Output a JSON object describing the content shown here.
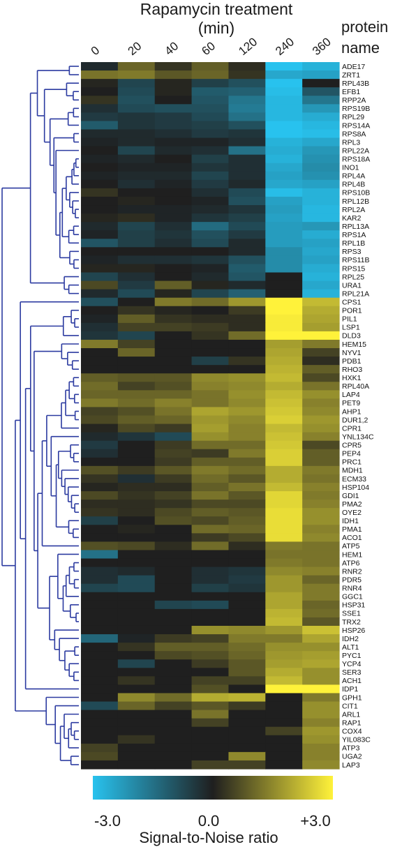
{
  "chart_data": {
    "type": "heatmap",
    "title_line1": "Rapamycin treatment",
    "title_line2": "(min)",
    "row_header_line1": "protein",
    "row_header_line2": "name",
    "x": [
      "0",
      "20",
      "40",
      "60",
      "120",
      "240",
      "360"
    ],
    "rows": [
      "ADE17",
      "ZRT1",
      "RPL43B",
      "EFB1",
      "RPP2A",
      "RPS19B",
      "RPL29",
      "RPS14A",
      "RPS8A",
      "RPL3",
      "RPL22A",
      "RPS18A",
      "INO1",
      "RPL4A",
      "RPL4B",
      "RPS10B",
      "RPL12B",
      "RPL2A",
      "KAR2",
      "RPL13A",
      "RPS1A",
      "RPL1B",
      "RPS3",
      "RPS11B",
      "RPS15",
      "RPL25",
      "URA1",
      "RPL21A",
      "CPS1",
      "POR1",
      "PIL1",
      "LSP1",
      "DLD3",
      "HEM15",
      "NYV1",
      "PDB1",
      "RHO3",
      "HXK1",
      "RPL40A",
      "LAP4",
      "PET9",
      "AHP1",
      "DUR1,2",
      "CPR1",
      "YNL134C",
      "CPR5",
      "PEP4",
      "PRC1",
      "MDH1",
      "ECM33",
      "HSP104",
      "GDI1",
      "PMA2",
      "OYE2",
      "IDH1",
      "PMA1",
      "ACO1",
      "ATP5",
      "HEM1",
      "ATP6",
      "RNR2",
      "PDR5",
      "RNR4",
      "GGC1",
      "HSP31",
      "SSE1",
      "TRX2",
      "HSP26",
      "IDH2",
      "ALT1",
      "PYC1",
      "YCP4",
      "SER3",
      "ACH1",
      "IDP1",
      "GPH1",
      "CIT1",
      "ARL1",
      "RAP1",
      "COX4",
      "YIL083C",
      "ATP3",
      "UGA2",
      "LAP3"
    ],
    "values": [
      [
        -0.2,
        1.0,
        0.3,
        0.9,
        0.2,
        -3.0,
        -2.7
      ],
      [
        1.2,
        1.3,
        0.8,
        1.0,
        0.3,
        -2.5,
        -2.4
      ],
      [
        0.1,
        -0.7,
        0.1,
        -0.6,
        -0.9,
        -3.0,
        0.0
      ],
      [
        0.0,
        -0.8,
        0.1,
        -1.1,
        -1.2,
        -2.9,
        -1.0
      ],
      [
        0.3,
        -0.9,
        0.0,
        -1.0,
        -1.6,
        -2.8,
        -1.6
      ],
      [
        -0.3,
        -0.8,
        -0.9,
        -0.9,
        -1.7,
        -2.8,
        -2.2
      ],
      [
        -0.5,
        -0.4,
        -0.5,
        -0.8,
        -1.5,
        -2.8,
        -2.6
      ],
      [
        -1.1,
        -0.4,
        -0.5,
        -0.6,
        -0.9,
        -3.0,
        -2.8
      ],
      [
        -0.2,
        -0.2,
        -0.3,
        -0.5,
        -0.4,
        -3.0,
        -2.9
      ],
      [
        -0.1,
        -0.2,
        -0.1,
        -0.1,
        -0.3,
        -2.7,
        -2.5
      ],
      [
        0.0,
        -0.7,
        -0.2,
        -0.3,
        -1.5,
        -2.6,
        -2.2
      ],
      [
        -0.1,
        -0.2,
        0.0,
        -0.6,
        -0.3,
        -2.7,
        -2.1
      ],
      [
        0.0,
        -0.1,
        -0.1,
        -0.4,
        -0.3,
        -2.5,
        -2.0
      ],
      [
        -0.1,
        -0.2,
        -0.2,
        -0.7,
        -0.3,
        -2.4,
        -2.1
      ],
      [
        0.0,
        -0.3,
        -0.1,
        -0.5,
        -0.2,
        -2.5,
        -2.4
      ],
      [
        0.3,
        0.0,
        0.0,
        -0.3,
        -0.8,
        -2.9,
        -2.7
      ],
      [
        0.0,
        0.1,
        0.0,
        -0.1,
        -0.9,
        -2.4,
        -2.7
      ],
      [
        0.0,
        -0.1,
        -0.1,
        -0.2,
        -0.4,
        -2.3,
        -2.8
      ],
      [
        0.1,
        0.2,
        -0.1,
        -0.4,
        -0.6,
        -2.4,
        -2.8
      ],
      [
        -0.2,
        -0.7,
        -0.3,
        -1.4,
        -0.8,
        -2.3,
        -2.2
      ],
      [
        -0.1,
        -0.6,
        -0.4,
        -0.9,
        -0.5,
        -2.3,
        -2.6
      ],
      [
        -1.0,
        -0.6,
        -0.3,
        -0.8,
        -0.2,
        -2.3,
        -2.4
      ],
      [
        0.0,
        0.0,
        0.0,
        0.0,
        -0.2,
        -2.0,
        -2.5
      ],
      [
        -0.1,
        -0.3,
        -0.3,
        -0.4,
        -0.9,
        -2.0,
        -2.4
      ],
      [
        0.1,
        0.1,
        0.0,
        -0.1,
        -1.1,
        -2.0,
        -2.6
      ],
      [
        -0.7,
        -0.3,
        0.0,
        -0.2,
        -1.0,
        0.0,
        -2.7
      ],
      [
        0.6,
        -0.5,
        0.9,
        0.1,
        -0.2,
        0.0,
        -2.5
      ],
      [
        -0.2,
        -0.8,
        0.1,
        -0.7,
        -1.2,
        0.0,
        -2.7
      ],
      [
        -0.9,
        0.0,
        1.3,
        1.1,
        1.7,
        3.0,
        2.2
      ],
      [
        0.0,
        0.3,
        0.1,
        0.0,
        0.4,
        3.0,
        2.0
      ],
      [
        -0.1,
        0.9,
        0.3,
        0.2,
        0.2,
        2.9,
        1.9
      ],
      [
        -0.3,
        0.5,
        0.5,
        0.4,
        0.2,
        2.9,
        1.8
      ],
      [
        -0.4,
        -0.7,
        0.0,
        0.3,
        1.1,
        3.0,
        3.0
      ],
      [
        1.3,
        0.5,
        0.0,
        0.0,
        0.0,
        1.8,
        1.3
      ],
      [
        0.0,
        1.0,
        0.0,
        0.0,
        0.0,
        1.9,
        0.5
      ],
      [
        0.0,
        0.0,
        0.0,
        -0.6,
        0.3,
        2.0,
        0.2
      ],
      [
        0.0,
        0.0,
        0.0,
        0.0,
        0.0,
        2.1,
        0.9
      ],
      [
        0.9,
        0.8,
        0.8,
        1.5,
        1.6,
        2.2,
        0.6
      ],
      [
        1.1,
        0.5,
        0.7,
        1.4,
        1.5,
        2.0,
        1.2
      ],
      [
        1.0,
        1.0,
        1.0,
        1.2,
        1.6,
        2.2,
        1.6
      ],
      [
        1.3,
        1.1,
        1.4,
        1.2,
        1.5,
        2.3,
        1.4
      ],
      [
        0.5,
        0.7,
        1.2,
        1.9,
        1.7,
        2.4,
        1.5
      ],
      [
        0.6,
        0.9,
        1.0,
        1.7,
        1.5,
        2.5,
        1.7
      ],
      [
        0.1,
        0.6,
        0.4,
        1.8,
        1.4,
        2.2,
        1.6
      ],
      [
        -0.2,
        -0.4,
        -0.8,
        1.6,
        1.4,
        2.3,
        1.4
      ],
      [
        -0.5,
        0.0,
        0.4,
        1.1,
        1.1,
        2.4,
        0.6
      ],
      [
        -0.3,
        0.0,
        0.5,
        0.4,
        1.3,
        2.5,
        0.9
      ],
      [
        0.0,
        0.0,
        0.4,
        0.9,
        0.9,
        2.5,
        0.9
      ],
      [
        0.7,
        0.4,
        0.8,
        1.3,
        1.1,
        2.0,
        1.3
      ],
      [
        0.3,
        -0.3,
        0.4,
        1.1,
        0.8,
        2.0,
        1.2
      ],
      [
        0.1,
        0.2,
        0.2,
        0.9,
        1.2,
        2.2,
        1.4
      ],
      [
        0.6,
        0.3,
        0.5,
        1.2,
        0.8,
        2.6,
        1.3
      ],
      [
        0.2,
        0.2,
        0.3,
        0.6,
        0.6,
        2.6,
        1.4
      ],
      [
        0.3,
        0.2,
        0.6,
        0.9,
        0.8,
        2.7,
        1.6
      ],
      [
        -0.6,
        0.0,
        0.7,
        0.6,
        0.9,
        2.7,
        1.6
      ],
      [
        0.0,
        0.1,
        0.0,
        1.1,
        1.0,
        2.7,
        1.4
      ],
      [
        0.0,
        0.0,
        0.0,
        0.4,
        0.6,
        2.7,
        1.5
      ],
      [
        0.7,
        0.6,
        0.2,
        1.1,
        0.2,
        1.3,
        1.2
      ],
      [
        -1.5,
        0.0,
        0.0,
        0.0,
        0.0,
        1.2,
        1.2
      ],
      [
        0.0,
        0.0,
        0.0,
        0.0,
        0.0,
        1.3,
        1.2
      ],
      [
        -0.3,
        -0.2,
        0.0,
        -0.3,
        -0.4,
        1.5,
        1.4
      ],
      [
        -0.3,
        -0.8,
        0.0,
        -0.3,
        -0.5,
        1.7,
        1.0
      ],
      [
        -0.7,
        -0.8,
        0.0,
        -0.6,
        -0.4,
        1.7,
        1.3
      ],
      [
        0.0,
        0.0,
        0.0,
        0.0,
        0.0,
        1.9,
        1.3
      ],
      [
        0.0,
        0.0,
        -0.7,
        -0.8,
        0.0,
        1.9,
        1.0
      ],
      [
        0.0,
        0.0,
        0.0,
        0.0,
        0.0,
        2.1,
        1.1
      ],
      [
        0.0,
        0.0,
        0.0,
        0.0,
        0.0,
        2.2,
        0.8
      ],
      [
        0.0,
        0.0,
        0.0,
        1.6,
        1.5,
        1.7,
        2.3
      ],
      [
        -1.3,
        -0.1,
        0.4,
        0.5,
        1.3,
        1.3,
        1.9
      ],
      [
        0.0,
        0.3,
        0.9,
        0.9,
        1.1,
        1.6,
        1.6
      ],
      [
        0.0,
        0.0,
        0.6,
        0.7,
        1.0,
        1.7,
        1.8
      ],
      [
        0.0,
        -0.7,
        0.0,
        0.4,
        0.8,
        1.8,
        1.9
      ],
      [
        0.0,
        0.0,
        0.0,
        0.0,
        0.8,
        2.0,
        1.6
      ],
      [
        0.0,
        0.3,
        0.0,
        0.5,
        0.5,
        2.2,
        1.6
      ],
      [
        0.0,
        0.0,
        0.0,
        0.7,
        0.0,
        3.0,
        3.0
      ],
      [
        0.0,
        1.5,
        1.1,
        2.0,
        2.1,
        0.0,
        1.3
      ],
      [
        -0.8,
        1.0,
        0.5,
        0.8,
        0.4,
        0.0,
        1.6
      ],
      [
        0.0,
        0.0,
        0.0,
        1.2,
        0.0,
        0.0,
        1.6
      ],
      [
        0.0,
        0.0,
        0.0,
        0.5,
        0.0,
        0.0,
        1.4
      ],
      [
        0.0,
        0.0,
        0.0,
        0.0,
        0.0,
        0.5,
        1.7
      ],
      [
        0.0,
        0.3,
        0.0,
        0.0,
        0.0,
        0.0,
        1.6
      ],
      [
        0.5,
        0.0,
        0.0,
        0.0,
        0.0,
        0.0,
        1.4
      ],
      [
        0.6,
        0.0,
        0.0,
        0.0,
        1.5,
        0.0,
        1.4
      ],
      [
        0.0,
        0.0,
        0.0,
        0.5,
        0.5,
        0.0,
        1.5
      ]
    ],
    "colorbar": {
      "min_label": "-3.0",
      "mid_label": "0.0",
      "max_label": "+3.0",
      "xlabel": "Signal-to-Noise ratio",
      "range": [
        -3.0,
        3.0
      ]
    },
    "colors": {
      "negative": "#28c2ee",
      "zero": "#1f1f1f",
      "positive": "#fff23a"
    },
    "dendrogram_color": "#2b3aa0"
  }
}
